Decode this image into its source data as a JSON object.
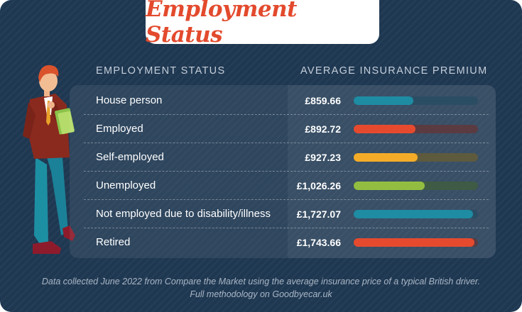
{
  "title": "Employment Status",
  "columns": {
    "category": "EMPLOYMENT STATUS",
    "value": "AVERAGE INSURANCE PREMIUM"
  },
  "chart_data": {
    "type": "bar",
    "orientation": "horizontal",
    "title": "Employment Status",
    "categories": [
      "House person",
      "Employed",
      "Self-employed",
      "Unemployed",
      "Not employed due to disability/illness",
      "Retired"
    ],
    "values": [
      859.66,
      892.72,
      927.23,
      1026.26,
      1727.07,
      1743.66
    ],
    "value_labels": [
      "£859.66",
      "£892.72",
      "£927.23",
      "£1,026.26",
      "£1,727.07",
      "£1,743.66"
    ],
    "xlim": [
      0,
      1800
    ],
    "grid": false,
    "colors": [
      "#1e8ca3",
      "#e64a2e",
      "#f4ac28",
      "#93bd40",
      "#1e8ca3",
      "#e64a2e"
    ],
    "track_colors": [
      "#2b4d64",
      "#5a3b42",
      "#5e5a3e",
      "#3f5a45",
      "#2b4d64",
      "#5a3b42"
    ]
  },
  "footnote": {
    "line1": "Data collected June 2022 from Compare the Market using the average insurance price of a typical British driver.",
    "line2": "Full methodology on Goodbyecar.uk"
  }
}
